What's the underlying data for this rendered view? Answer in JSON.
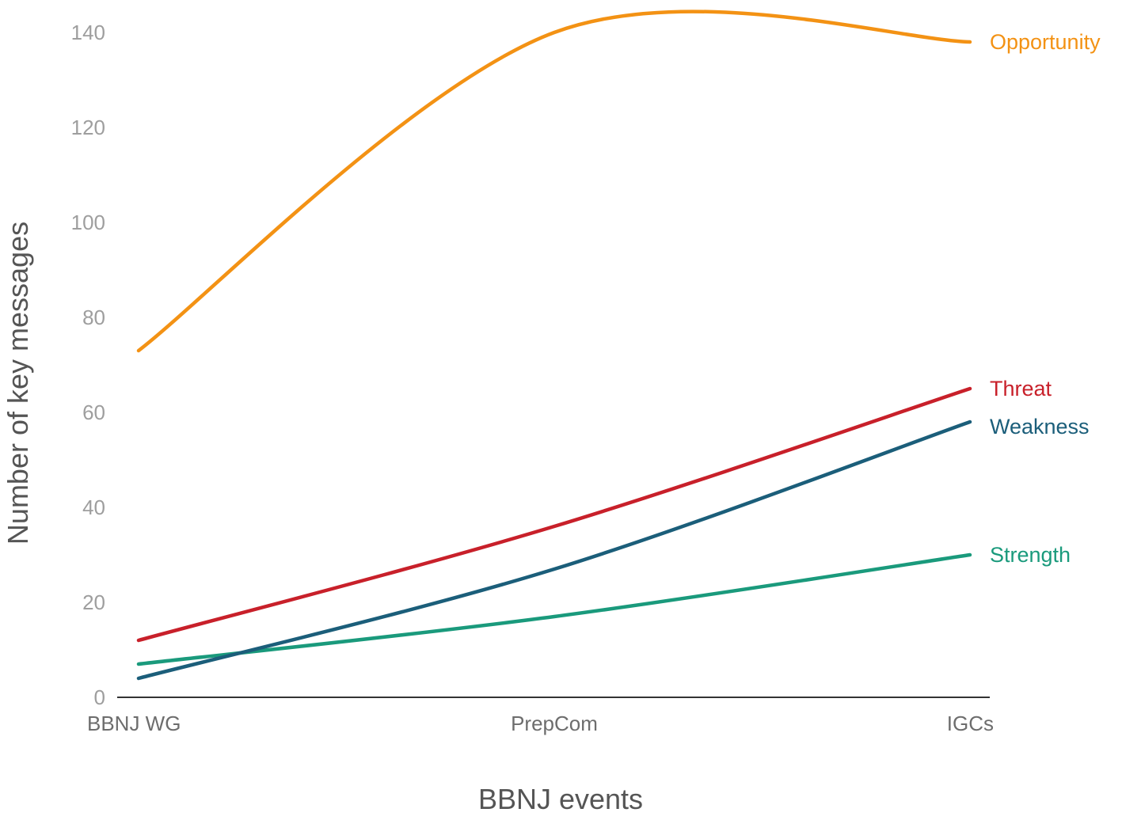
{
  "chart_data": {
    "type": "line",
    "xlabel": "BBNJ events",
    "ylabel": "Number of key messages",
    "categories": [
      "BBNJ WG",
      "PrepCom",
      "IGCs"
    ],
    "ylim": [
      0,
      140
    ],
    "yticks": [
      0,
      20,
      40,
      60,
      80,
      100,
      120,
      140
    ],
    "grid": false,
    "legend": "labels at line ends (right)",
    "series": [
      {
        "name": "Opportunity",
        "values": [
          73,
          140,
          138
        ],
        "color": "#f39214"
      },
      {
        "name": "Threat",
        "values": [
          12,
          36,
          65
        ],
        "color": "#c8202a"
      },
      {
        "name": "Weakness",
        "values": [
          4,
          27,
          58
        ],
        "color": "#1b5e7a"
      },
      {
        "name": "Strength",
        "values": [
          7,
          17,
          30
        ],
        "color": "#1a9a7c"
      }
    ]
  }
}
